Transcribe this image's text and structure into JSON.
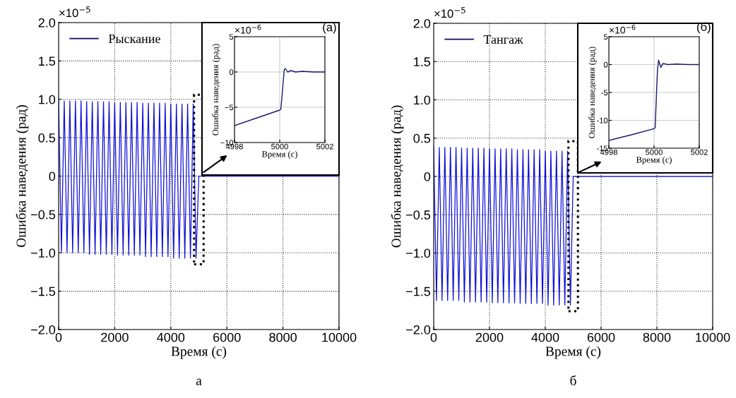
{
  "chart_data": [
    {
      "type": "line",
      "xlabel": "Время (с)",
      "ylabel": "Ошибка наведения (рад)",
      "annotations": [
        "×10$^{−5}$",
        "а"
      ],
      "x": [
        0,
        100,
        200,
        300,
        400,
        500,
        600,
        700,
        800,
        900,
        1000,
        1100,
        1200,
        1300,
        1400,
        1500,
        1600,
        1700,
        1800,
        1900,
        2000,
        2100,
        2200,
        2300,
        2400,
        2500,
        2600,
        2700,
        2800,
        2900,
        3000,
        3100,
        3200,
        3300,
        3400,
        3500,
        3600,
        3700,
        3800,
        3900,
        4000,
        4100,
        4200,
        4300,
        4400,
        4500,
        4600,
        4700,
        4800,
        4900,
        5000,
        10000
      ],
      "series": [
        {
          "name": "Рыскание",
          "color": "#1010d8",
          "values": [
            0.98,
            -1.0,
            0.98,
            -1.0,
            0.98,
            -1.0,
            0.98,
            -1.0,
            0.98,
            -1.0,
            0.97,
            -1.02,
            0.97,
            -1.02,
            0.97,
            -1.02,
            0.97,
            -1.02,
            0.97,
            -1.02,
            0.96,
            -1.03,
            0.96,
            -1.03,
            0.96,
            -1.03,
            0.96,
            -1.03,
            0.96,
            -1.03,
            0.95,
            -1.05,
            0.95,
            -1.05,
            0.95,
            -1.05,
            0.95,
            -1.05,
            0.95,
            -1.05,
            0.94,
            -1.07,
            0.94,
            -1.07,
            0.94,
            -1.07,
            0.94,
            -1.07,
            0.94,
            -1.07,
            0,
            0
          ]
        }
      ],
      "xlim": [
        0,
        10000
      ],
      "xticks": [
        0,
        2000,
        4000,
        6000,
        8000,
        10000
      ],
      "ylim": [
        -2.0,
        2.0
      ],
      "yticks": [
        {
          "value": -2.0,
          "label": "−2.0"
        },
        {
          "value": -1.5,
          "label": "−1.5"
        },
        {
          "value": -1.0,
          "label": "−1.0"
        },
        {
          "value": -0.5,
          "label": "−0.5"
        },
        0,
        {
          "value": 0.5,
          "label": "0.5"
        },
        {
          "value": 1.0,
          "label": "1.0"
        },
        {
          "value": 1.5,
          "label": "1.5"
        },
        {
          "value": 2.0,
          "label": "2.0"
        }
      ],
      "grid": true,
      "legend": "top left"
    },
    {
      "type": "line",
      "xlabel": "Время (с)",
      "ylabel": "Ошибка наведения (рад)",
      "annotations": [
        "×10$^{−6}$",
        "(а)"
      ],
      "x": [
        4998,
        4999,
        5000,
        5000.05,
        5000.1,
        5000.2,
        5000.25,
        5000.35,
        5000.5,
        5000.7,
        5001,
        5001.5,
        5002
      ],
      "series": [
        {
          "color": "#1a1a6e",
          "values": [
            -7.6,
            -6.5,
            -5.4,
            -5.3,
            -3.5,
            0.3,
            0.5,
            0.0,
            0.2,
            0.0,
            0.1,
            0.0,
            0.0
          ]
        }
      ],
      "xlim": [
        4998,
        5002
      ],
      "xticks": [
        4998,
        5000,
        5002
      ],
      "ylim": [
        -10,
        5
      ],
      "yticks": [
        {
          "value": -10,
          "label": "−10"
        },
        {
          "value": -5,
          "label": "−5"
        },
        0,
        5
      ],
      "grid": true,
      "line_style": "solid"
    },
    {
      "type": "line",
      "xlabel": "Время (с)",
      "ylabel": "Ошибка наведения (рад)",
      "annotations": [
        "×10$^{−5}$",
        "б"
      ],
      "x": [
        0,
        100,
        200,
        300,
        400,
        500,
        600,
        700,
        800,
        900,
        1000,
        1100,
        1200,
        1300,
        1400,
        1500,
        1600,
        1700,
        1800,
        1900,
        2000,
        2100,
        2200,
        2300,
        2400,
        2500,
        2600,
        2700,
        2800,
        2900,
        3000,
        3100,
        3200,
        3300,
        3400,
        3500,
        3600,
        3700,
        3800,
        3900,
        4000,
        4100,
        4200,
        4300,
        4400,
        4500,
        4600,
        4700,
        4800,
        4900,
        5000,
        10000
      ],
      "series": [
        {
          "name": "Тангаж",
          "color": "#1010d8",
          "values": [
            0.38,
            -1.62,
            0.38,
            -1.62,
            0.38,
            -1.62,
            0.38,
            -1.62,
            0.38,
            -1.62,
            0.37,
            -1.64,
            0.37,
            -1.64,
            0.37,
            -1.64,
            0.37,
            -1.64,
            0.37,
            -1.64,
            0.36,
            -1.65,
            0.36,
            -1.65,
            0.36,
            -1.65,
            0.36,
            -1.65,
            0.36,
            -1.65,
            0.35,
            -1.66,
            0.35,
            -1.66,
            0.35,
            -1.66,
            0.35,
            -1.66,
            0.35,
            -1.66,
            0.33,
            -1.68,
            0.33,
            -1.68,
            0.33,
            -1.68,
            0.33,
            -1.68,
            0.33,
            -1.68,
            0,
            0
          ]
        }
      ],
      "xlim": [
        0,
        10000
      ],
      "xticks": [
        0,
        2000,
        4000,
        6000,
        8000,
        10000
      ],
      "ylim": [
        -2.0,
        2.0
      ],
      "yticks": [
        {
          "value": -2.0,
          "label": "−2.0"
        },
        {
          "value": -1.5,
          "label": "−1.5"
        },
        {
          "value": -1.0,
          "label": "−1.0"
        },
        {
          "value": -0.5,
          "label": "−0.5"
        },
        0,
        {
          "value": 0.5,
          "label": "0.5"
        },
        {
          "value": 1.0,
          "label": "1.0"
        },
        {
          "value": 1.5,
          "label": "1.5"
        },
        {
          "value": 2.0,
          "label": "2.0"
        }
      ],
      "grid": true,
      "legend": "top left"
    },
    {
      "type": "line",
      "xlabel": "Время (с)",
      "ylabel": "Ошибка наведения (рад)",
      "annotations": [
        "×10$^{−6}$",
        "(б)"
      ],
      "x": [
        4998,
        4999,
        5000,
        5000.05,
        5000.1,
        5000.15,
        5000.2,
        5000.3,
        5000.4,
        5000.6,
        5001,
        5001.5,
        5002
      ],
      "series": [
        {
          "color": "#1a1a6e",
          "values": [
            -13.6,
            -12.6,
            -11.5,
            -11.3,
            -6.0,
            -1.0,
            0.8,
            -0.5,
            0.2,
            0.0,
            0.1,
            0.0,
            0.0
          ]
        }
      ],
      "xlim": [
        4998,
        5002
      ],
      "xticks": [
        4998,
        5000,
        5002
      ],
      "ylim": [
        -15,
        5
      ],
      "yticks": [
        {
          "value": -15,
          "label": "-15"
        },
        {
          "value": -10,
          "label": "-10"
        },
        {
          "value": -5,
          "label": "-5"
        },
        0,
        5
      ],
      "grid": true,
      "line_style": "solid"
    }
  ]
}
